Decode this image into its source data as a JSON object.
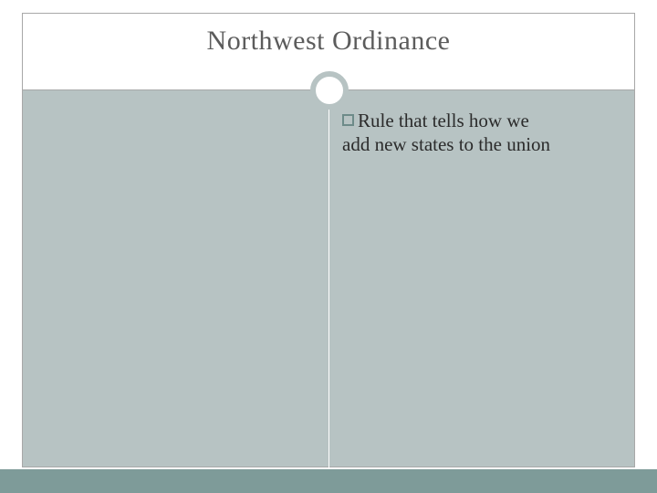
{
  "slide": {
    "title": "Northwest Ordinance",
    "bullet_text_line1": "Rule that tells how we",
    "body_text_continuation": "add new states to the union"
  },
  "styling": {
    "title_color": "#5c5c5c",
    "title_fontsize": 30,
    "body_fontsize": 21,
    "body_text_color": "#2b2b2b",
    "body_background": "#b7c3c3",
    "header_background": "#ffffff",
    "bottom_bar_color": "#7e9b99",
    "bullet_border_color": "#6d8b89",
    "circle_border_color": "#b7c3c3",
    "circle_border_width": 6,
    "border_color": "#a8a8a8",
    "divider_line_color": "#ffffff",
    "slide_width": 720,
    "slide_height": 540
  }
}
